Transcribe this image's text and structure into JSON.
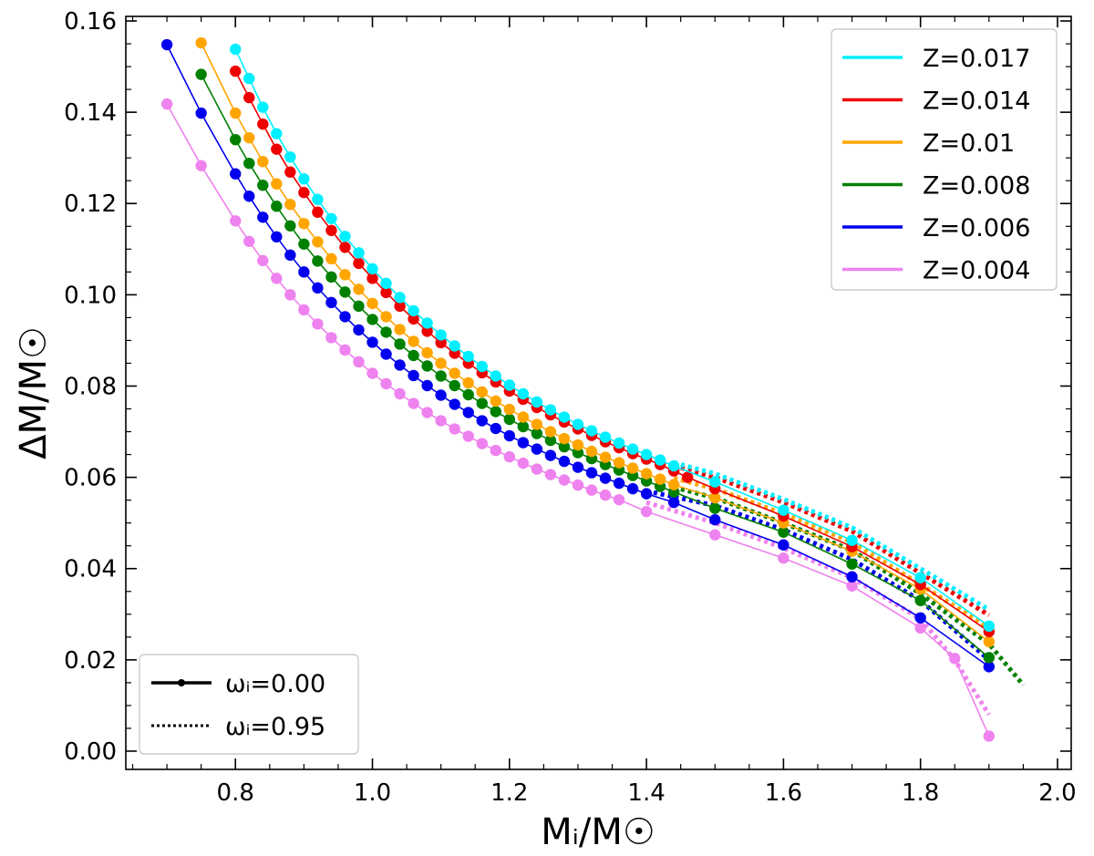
{
  "chart_data": {
    "type": "line",
    "title": "",
    "xlabel": "Mᵢ/M☉",
    "ylabel": "ΔM/M☉",
    "xlim": [
      0.64,
      2.02
    ],
    "ylim": [
      -0.004,
      0.161
    ],
    "xticks": [
      0.8,
      1.0,
      1.2,
      1.4,
      1.6,
      1.8,
      2.0
    ],
    "xtick_labels": [
      "0.8",
      "1.0",
      "1.2",
      "1.4",
      "1.6",
      "1.8",
      "2.0"
    ],
    "yticks": [
      0.0,
      0.02,
      0.04,
      0.06,
      0.08,
      0.1,
      0.12,
      0.14,
      0.16
    ],
    "ytick_labels": [
      "0.00",
      "0.02",
      "0.04",
      "0.06",
      "0.08",
      "0.10",
      "0.12",
      "0.14",
      "0.16"
    ],
    "grid": false,
    "legend_metallicity": {
      "placement": "top-right",
      "entries": [
        "Z=0.017",
        "Z=0.014",
        "Z=0.01",
        "Z=0.008",
        "Z=0.006",
        "Z=0.004"
      ]
    },
    "legend_rotation": {
      "placement": "bottom-left",
      "entries": [
        {
          "label": "ωᵢ=0.00",
          "style": "solid-with-markers"
        },
        {
          "label": "ωᵢ=0.95",
          "style": "dotted"
        }
      ]
    },
    "series": [
      {
        "name": "Z=0.017",
        "color": "#00f0ff",
        "omega_000": {
          "x": [
            0.8,
            0.82,
            0.84,
            0.86,
            0.88,
            0.9,
            0.92,
            0.94,
            0.96,
            0.98,
            1.0,
            1.02,
            1.04,
            1.06,
            1.08,
            1.1,
            1.12,
            1.14,
            1.16,
            1.18,
            1.2,
            1.22,
            1.24,
            1.26,
            1.28,
            1.3,
            1.32,
            1.34,
            1.36,
            1.38,
            1.4,
            1.42,
            1.44,
            1.5,
            1.6,
            1.7,
            1.8,
            1.9
          ],
          "y": [
            0.1538,
            0.1474,
            0.1411,
            0.1353,
            0.1302,
            0.1254,
            0.1209,
            0.1167,
            0.1128,
            0.1092,
            0.1057,
            0.1025,
            0.0994,
            0.0965,
            0.0938,
            0.0912,
            0.0888,
            0.0865,
            0.0843,
            0.0822,
            0.0802,
            0.0783,
            0.0765,
            0.0748,
            0.0732,
            0.0716,
            0.0702,
            0.0688,
            0.0675,
            0.0662,
            0.065,
            0.0638,
            0.0625,
            0.059,
            0.0528,
            0.0462,
            0.038,
            0.0274
          ]
        },
        "omega_095": {
          "x": [
            1.44,
            1.5,
            1.6,
            1.7,
            1.8,
            1.9
          ],
          "y": [
            0.0632,
            0.0608,
            0.0552,
            0.049,
            0.04,
            0.031
          ]
        }
      },
      {
        "name": "Z=0.014",
        "color": "#ee0000",
        "omega_000": {
          "x": [
            0.8,
            0.82,
            0.84,
            0.86,
            0.88,
            0.9,
            0.92,
            0.94,
            0.96,
            0.98,
            1.0,
            1.02,
            1.04,
            1.06,
            1.08,
            1.1,
            1.12,
            1.14,
            1.16,
            1.18,
            1.2,
            1.22,
            1.24,
            1.26,
            1.28,
            1.3,
            1.32,
            1.34,
            1.36,
            1.38,
            1.4,
            1.42,
            1.44,
            1.46,
            1.5,
            1.6,
            1.7,
            1.8,
            1.9
          ],
          "y": [
            0.149,
            0.1432,
            0.1374,
            0.1319,
            0.1269,
            0.1224,
            0.1181,
            0.1141,
            0.1104,
            0.1069,
            0.1036,
            0.1005,
            0.0975,
            0.0947,
            0.092,
            0.0895,
            0.0872,
            0.085,
            0.0829,
            0.0809,
            0.0789,
            0.0771,
            0.0753,
            0.0737,
            0.0721,
            0.0706,
            0.0692,
            0.0678,
            0.0665,
            0.0652,
            0.064,
            0.0628,
            0.0614,
            0.06,
            0.0575,
            0.0515,
            0.0448,
            0.0365,
            0.0262
          ]
        },
        "omega_095": {
          "x": [
            1.44,
            1.5,
            1.6,
            1.7,
            1.8,
            1.9
          ],
          "y": [
            0.0625,
            0.06,
            0.0545,
            0.0482,
            0.039,
            0.0298
          ]
        }
      },
      {
        "name": "Z=0.01",
        "color": "#ffa500",
        "omega_000": {
          "x": [
            0.75,
            0.8,
            0.82,
            0.84,
            0.86,
            0.88,
            0.9,
            0.92,
            0.94,
            0.96,
            0.98,
            1.0,
            1.02,
            1.04,
            1.06,
            1.08,
            1.1,
            1.12,
            1.14,
            1.16,
            1.18,
            1.2,
            1.22,
            1.24,
            1.26,
            1.28,
            1.3,
            1.32,
            1.34,
            1.36,
            1.38,
            1.4,
            1.42,
            1.44,
            1.5,
            1.6,
            1.7,
            1.8,
            1.9
          ],
          "y": [
            0.1552,
            0.1398,
            0.1344,
            0.1292,
            0.1243,
            0.1198,
            0.1156,
            0.1116,
            0.1079,
            0.1044,
            0.1012,
            0.0981,
            0.0952,
            0.0924,
            0.0898,
            0.0873,
            0.085,
            0.0828,
            0.0807,
            0.0787,
            0.0767,
            0.0749,
            0.0732,
            0.0716,
            0.07,
            0.0685,
            0.0671,
            0.0657,
            0.0644,
            0.0632,
            0.062,
            0.0608,
            0.0596,
            0.0584,
            0.0555,
            0.05,
            0.0438,
            0.0355,
            0.024
          ]
        },
        "omega_095": {
          "x": [
            1.44,
            1.5,
            1.6,
            1.7,
            1.8,
            1.9
          ],
          "y": [
            0.0598,
            0.0575,
            0.052,
            0.0458,
            0.0365,
            0.027
          ]
        }
      },
      {
        "name": "Z=0.008",
        "color": "#008000",
        "omega_000": {
          "x": [
            0.75,
            0.8,
            0.82,
            0.84,
            0.86,
            0.88,
            0.9,
            0.92,
            0.94,
            0.96,
            0.98,
            1.0,
            1.02,
            1.04,
            1.06,
            1.08,
            1.1,
            1.12,
            1.14,
            1.16,
            1.18,
            1.2,
            1.22,
            1.24,
            1.26,
            1.28,
            1.3,
            1.32,
            1.34,
            1.36,
            1.38,
            1.4,
            1.42,
            1.44,
            1.5,
            1.6,
            1.7,
            1.8,
            1.9
          ],
          "y": [
            0.1483,
            0.134,
            0.1288,
            0.124,
            0.1194,
            0.1151,
            0.1111,
            0.1074,
            0.1039,
            0.1006,
            0.0975,
            0.0946,
            0.0918,
            0.0892,
            0.0867,
            0.0844,
            0.0822,
            0.0801,
            0.0781,
            0.0762,
            0.0744,
            0.0727,
            0.0711,
            0.0696,
            0.0681,
            0.0667,
            0.0654,
            0.0641,
            0.0628,
            0.0616,
            0.0604,
            0.0592,
            0.058,
            0.0568,
            0.0532,
            0.048,
            0.041,
            0.033,
            0.0205
          ]
        },
        "omega_095": {
          "x": [
            1.44,
            1.5,
            1.6,
            1.7,
            1.8,
            1.9,
            1.95
          ],
          "y": [
            0.0578,
            0.0555,
            0.05,
            0.044,
            0.0345,
            0.0235,
            0.0145
          ]
        }
      },
      {
        "name": "Z=0.006",
        "color": "#0000ee",
        "omega_000": {
          "x": [
            0.7,
            0.75,
            0.8,
            0.82,
            0.84,
            0.86,
            0.88,
            0.9,
            0.92,
            0.94,
            0.96,
            0.98,
            1.0,
            1.02,
            1.04,
            1.06,
            1.08,
            1.1,
            1.12,
            1.14,
            1.16,
            1.18,
            1.2,
            1.22,
            1.24,
            1.26,
            1.28,
            1.3,
            1.32,
            1.34,
            1.36,
            1.38,
            1.4,
            1.44,
            1.5,
            1.6,
            1.7,
            1.8,
            1.9
          ],
          "y": [
            0.1548,
            0.1398,
            0.1265,
            0.1216,
            0.117,
            0.1127,
            0.1087,
            0.105,
            0.1015,
            0.0983,
            0.0952,
            0.0923,
            0.0896,
            0.087,
            0.0846,
            0.0823,
            0.0801,
            0.078,
            0.076,
            0.0742,
            0.0724,
            0.0707,
            0.0691,
            0.0676,
            0.0662,
            0.0648,
            0.0635,
            0.0622,
            0.061,
            0.0598,
            0.0587,
            0.0575,
            0.0564,
            0.0545,
            0.0507,
            0.0452,
            0.0382,
            0.0292,
            0.0185
          ]
        },
        "omega_095": {
          "x": [
            1.4,
            1.5,
            1.6,
            1.7,
            1.8,
            1.9
          ],
          "y": [
            0.057,
            0.0538,
            0.0485,
            0.042,
            0.033,
            0.02
          ]
        }
      },
      {
        "name": "Z=0.004",
        "color": "#ee82ee",
        "omega_000": {
          "x": [
            0.7,
            0.75,
            0.8,
            0.82,
            0.84,
            0.86,
            0.88,
            0.9,
            0.92,
            0.94,
            0.96,
            0.98,
            1.0,
            1.02,
            1.04,
            1.06,
            1.08,
            1.1,
            1.12,
            1.14,
            1.16,
            1.18,
            1.2,
            1.22,
            1.24,
            1.26,
            1.28,
            1.3,
            1.32,
            1.34,
            1.36,
            1.4,
            1.5,
            1.6,
            1.7,
            1.8,
            1.85,
            1.9
          ],
          "y": [
            0.1418,
            0.1283,
            0.1162,
            0.1117,
            0.1075,
            0.1036,
            0.1,
            0.0967,
            0.0936,
            0.0906,
            0.0879,
            0.0853,
            0.0828,
            0.0805,
            0.0783,
            0.0762,
            0.0742,
            0.0724,
            0.0706,
            0.069,
            0.0674,
            0.0659,
            0.0645,
            0.0631,
            0.0618,
            0.0606,
            0.0594,
            0.0583,
            0.0572,
            0.0561,
            0.0551,
            0.0525,
            0.0474,
            0.0423,
            0.0362,
            0.027,
            0.0203,
            0.0033
          ]
        },
        "omega_095": {
          "x": [
            1.4,
            1.5,
            1.6,
            1.7,
            1.8,
            1.85,
            1.9
          ],
          "y": [
            0.0545,
            0.05,
            0.0445,
            0.038,
            0.029,
            0.02,
            0.008
          ]
        }
      }
    ]
  }
}
